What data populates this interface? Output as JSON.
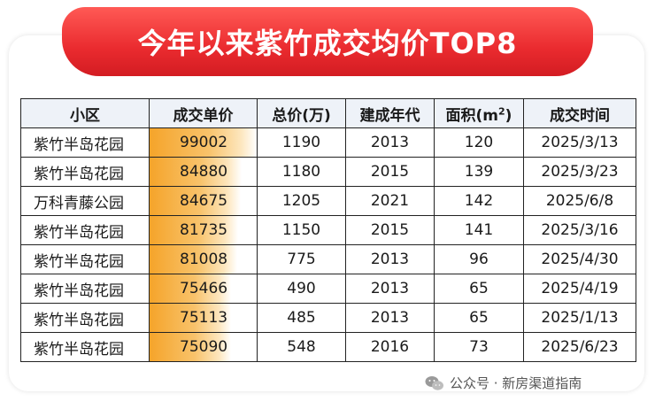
{
  "title": "今年以来紫竹成交均价TOP8",
  "table": {
    "headers": [
      "小区",
      "成交单价",
      "总价(万)",
      "建成年代",
      "面积(m",
      "成交时间"
    ],
    "area_sup": "2",
    "area_close": ")",
    "rows": [
      {
        "name": "紫竹半岛花园",
        "unit_price": "99002",
        "total": "1190",
        "year": "2013",
        "area": "120",
        "date": "2025/3/13",
        "bar_fraction": 1.0
      },
      {
        "name": "紫竹半岛花园",
        "unit_price": "84880",
        "total": "1180",
        "year": "2015",
        "area": "139",
        "date": "2025/3/23",
        "bar_fraction": 0.857
      },
      {
        "name": "万科青藤公园",
        "unit_price": "84675",
        "total": "1205",
        "year": "2021",
        "area": "142",
        "date": "2025/6/8",
        "bar_fraction": 0.855
      },
      {
        "name": "紫竹半岛花园",
        "unit_price": "81735",
        "total": "1150",
        "year": "2015",
        "area": "141",
        "date": "2025/3/16",
        "bar_fraction": 0.826
      },
      {
        "name": "紫竹半岛花园",
        "unit_price": "81008",
        "total": "775",
        "year": "2013",
        "area": "96",
        "date": "2025/4/30",
        "bar_fraction": 0.818
      },
      {
        "name": "紫竹半岛花园",
        "unit_price": "75466",
        "total": "490",
        "year": "2013",
        "area": "65",
        "date": "2025/4/19",
        "bar_fraction": 0.762
      },
      {
        "name": "紫竹半岛花园",
        "unit_price": "75113",
        "total": "485",
        "year": "2013",
        "area": "65",
        "date": "2025/1/13",
        "bar_fraction": 0.759
      },
      {
        "name": "紫竹半岛花园",
        "unit_price": "75090",
        "total": "548",
        "year": "2016",
        "area": "73",
        "date": "2025/6/23",
        "bar_fraction": 0.758
      }
    ]
  },
  "watermark": "公众号 · 新房渠道指南",
  "colors": {
    "banner": "#e8242a",
    "bar": "#f5a42a",
    "header_bg": "#eef2f8"
  }
}
